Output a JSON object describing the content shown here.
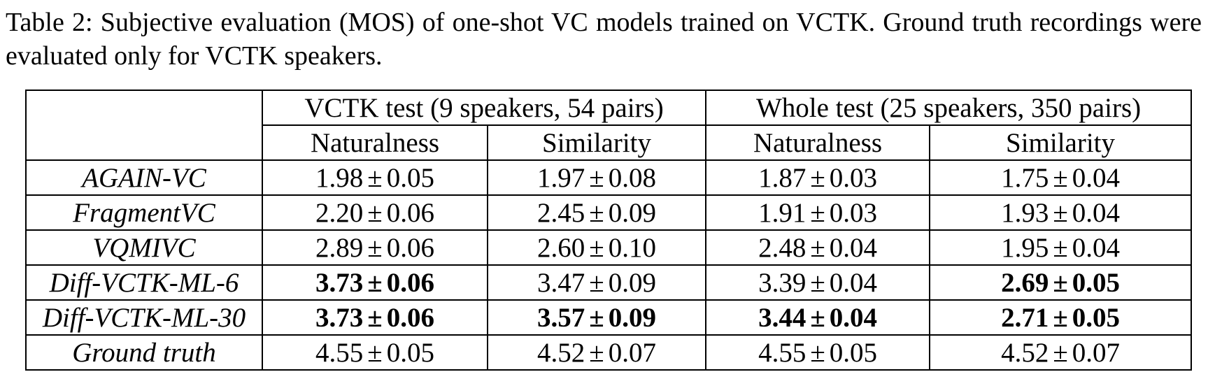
{
  "caption": "Table 2:  Subjective evaluation (MOS) of one-shot VC models trained on VCTK. Ground truth recordings were evaluated only for VCTK speakers.",
  "table": {
    "group_headers": [
      "VCTK test (9 speakers, 54 pairs)",
      "Whole test (25 speakers, 350 pairs)"
    ],
    "sub_headers": [
      "Naturalness",
      "Similarity",
      "Naturalness",
      "Similarity"
    ],
    "pm_symbol": "±",
    "rows": [
      {
        "model": "AGAIN-VC",
        "cells": [
          {
            "mean": "1.98",
            "err": "0.05",
            "bold": false
          },
          {
            "mean": "1.97",
            "err": "0.08",
            "bold": false
          },
          {
            "mean": "1.87",
            "err": "0.03",
            "bold": false
          },
          {
            "mean": "1.75",
            "err": "0.04",
            "bold": false
          }
        ]
      },
      {
        "model": "FragmentVC",
        "cells": [
          {
            "mean": "2.20",
            "err": "0.06",
            "bold": false
          },
          {
            "mean": "2.45",
            "err": "0.09",
            "bold": false
          },
          {
            "mean": "1.91",
            "err": "0.03",
            "bold": false
          },
          {
            "mean": "1.93",
            "err": "0.04",
            "bold": false
          }
        ]
      },
      {
        "model": "VQMIVC",
        "cells": [
          {
            "mean": "2.89",
            "err": "0.06",
            "bold": false
          },
          {
            "mean": "2.60",
            "err": "0.10",
            "bold": false
          },
          {
            "mean": "2.48",
            "err": "0.04",
            "bold": false
          },
          {
            "mean": "1.95",
            "err": "0.04",
            "bold": false
          }
        ]
      },
      {
        "model": "Diff-VCTK-ML-6",
        "cells": [
          {
            "mean": "3.73",
            "err": "0.06",
            "bold": true
          },
          {
            "mean": "3.47",
            "err": "0.09",
            "bold": false
          },
          {
            "mean": "3.39",
            "err": "0.04",
            "bold": false
          },
          {
            "mean": "2.69",
            "err": "0.05",
            "bold": true
          }
        ]
      },
      {
        "model": "Diff-VCTK-ML-30",
        "cells": [
          {
            "mean": "3.73",
            "err": "0.06",
            "bold": true
          },
          {
            "mean": "3.57",
            "err": "0.09",
            "bold": true
          },
          {
            "mean": "3.44",
            "err": "0.04",
            "bold": true
          },
          {
            "mean": "2.71",
            "err": "0.05",
            "bold": true
          }
        ]
      },
      {
        "model": "Ground truth",
        "cells": [
          {
            "mean": "4.55",
            "err": "0.05",
            "bold": false
          },
          {
            "mean": "4.52",
            "err": "0.07",
            "bold": false
          },
          {
            "mean": "4.55",
            "err": "0.05",
            "bold": false
          },
          {
            "mean": "4.52",
            "err": "0.07",
            "bold": false
          }
        ]
      }
    ]
  }
}
